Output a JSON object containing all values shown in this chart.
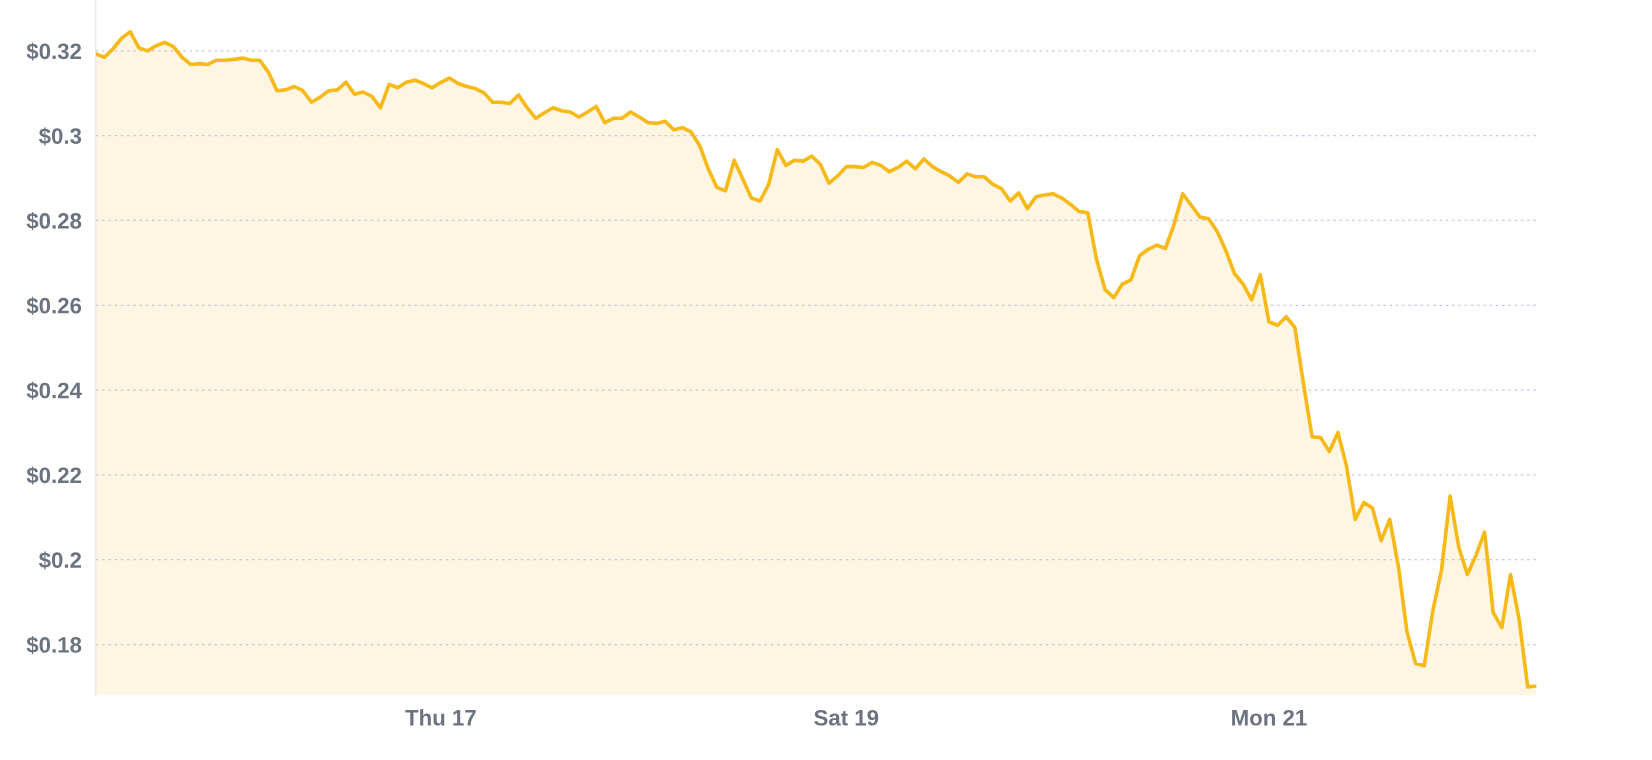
{
  "chart_data": {
    "type": "area",
    "categories": [
      null,
      null,
      null,
      null,
      null,
      null,
      null,
      null,
      null,
      null,
      null,
      null,
      null,
      null,
      null,
      null,
      null,
      null,
      null,
      null,
      null,
      null,
      null,
      null,
      null,
      null,
      null,
      null,
      null,
      null,
      null,
      null,
      null,
      null,
      null,
      null,
      null,
      null,
      null,
      null,
      "Thu 17",
      null,
      null,
      null,
      null,
      null,
      null,
      null,
      null,
      null,
      null,
      null,
      null,
      null,
      null,
      null,
      null,
      null,
      null,
      null,
      null,
      null,
      null,
      null,
      null,
      null,
      null,
      null,
      null,
      null,
      null,
      null,
      null,
      null,
      null,
      null,
      null,
      null,
      null,
      null,
      null,
      null,
      null,
      null,
      null,
      null,
      null,
      "Sat 19",
      null,
      null,
      null,
      null,
      null,
      null,
      null,
      null,
      null,
      null,
      null,
      null,
      null,
      null,
      null,
      null,
      null,
      null,
      null,
      null,
      null,
      null,
      null,
      null,
      null,
      null,
      null,
      null,
      null,
      null,
      null,
      null,
      null,
      null,
      null,
      null,
      null,
      null,
      null,
      null,
      null,
      null,
      null,
      null,
      null,
      null,
      null,
      null,
      "Mon 21",
      null,
      null,
      null,
      null,
      null,
      null,
      null,
      null,
      null,
      null,
      null,
      null,
      null,
      null,
      null,
      null,
      null,
      null,
      null,
      null,
      null,
      null,
      null,
      null,
      null,
      null,
      null,
      null,
      null,
      null,
      null
    ],
    "series": [
      {
        "color": "#f7b918",
        "values": [
          0.3193,
          0.3185,
          0.3205,
          0.323,
          0.3245,
          0.3207,
          0.32,
          0.3212,
          0.322,
          0.321,
          0.3185,
          0.3168,
          0.317,
          0.3168,
          0.3178,
          0.3178,
          0.318,
          0.3183,
          0.3178,
          0.3178,
          0.315,
          0.3106,
          0.3108,
          0.3116,
          0.3106,
          0.3079,
          0.3091,
          0.3106,
          0.3108,
          0.3126,
          0.3098,
          0.3103,
          0.3093,
          0.3066,
          0.3121,
          0.3113,
          0.3126,
          0.3131,
          0.3123,
          0.3113,
          0.3126,
          0.3136,
          0.3123,
          0.3116,
          0.3111,
          0.3101,
          0.3079,
          0.3079,
          0.3076,
          0.3096,
          0.3066,
          0.3041,
          0.3054,
          0.3066,
          0.3059,
          0.3056,
          0.3044,
          0.3056,
          0.3069,
          0.3031,
          0.3041,
          0.3041,
          0.3056,
          0.3044,
          0.3031,
          0.3029,
          0.3034,
          0.3014,
          0.3019,
          0.3009,
          0.2977,
          0.2922,
          0.2878,
          0.287,
          0.2942,
          0.2898,
          0.2853,
          0.2846,
          0.2885,
          0.2967,
          0.293,
          0.2942,
          0.294,
          0.2952,
          0.2932,
          0.2888,
          0.2905,
          0.2927,
          0.2927,
          0.2925,
          0.2937,
          0.293,
          0.2915,
          0.2925,
          0.294,
          0.2922,
          0.2945,
          0.2927,
          0.2915,
          0.2905,
          0.289,
          0.291,
          0.2903,
          0.2903,
          0.2885,
          0.2875,
          0.2846,
          0.2865,
          0.2828,
          0.2856,
          0.286,
          0.2863,
          0.2853,
          0.2838,
          0.2821,
          0.2818,
          0.2709,
          0.2637,
          0.2618,
          0.265,
          0.266,
          0.2717,
          0.2732,
          0.2742,
          0.2734,
          0.2791,
          0.2863,
          0.2836,
          0.2808,
          0.2804,
          0.2774,
          0.2729,
          0.2675,
          0.265,
          0.2613,
          0.2672,
          0.2561,
          0.2553,
          0.2573,
          0.2548,
          0.2415,
          0.229,
          0.2288,
          0.2255,
          0.23,
          0.222,
          0.2095,
          0.2135,
          0.2122,
          0.2045,
          0.2095,
          0.1985,
          0.183,
          0.1755,
          0.175,
          0.188,
          0.1975,
          0.215,
          0.203,
          0.1965,
          0.201,
          0.2065,
          0.1875,
          0.184,
          0.1965,
          0.186,
          0.17,
          0.1702
        ]
      }
    ],
    "ylim": [
      0.168,
      0.332
    ],
    "yticks": [
      {
        "value": 0.18,
        "label": "$0.18"
      },
      {
        "value": 0.2,
        "label": "$0.2"
      },
      {
        "value": 0.22,
        "label": "$0.22"
      },
      {
        "value": 0.24,
        "label": "$0.24"
      },
      {
        "value": 0.26,
        "label": "$0.26"
      },
      {
        "value": 0.28,
        "label": "$0.28"
      },
      {
        "value": 0.3,
        "label": "$0.3"
      },
      {
        "value": 0.32,
        "label": "$0.32"
      }
    ],
    "grid": "y"
  }
}
